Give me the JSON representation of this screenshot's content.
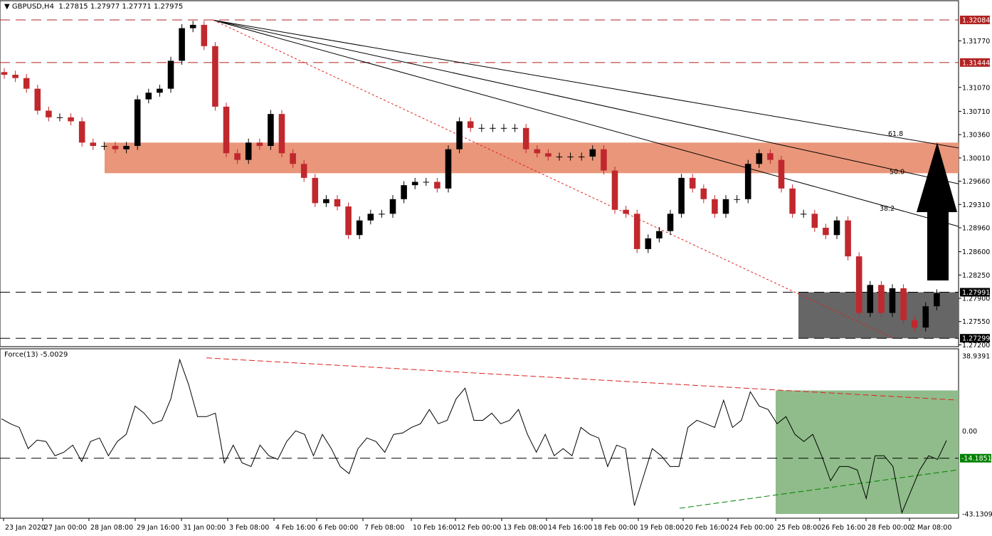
{
  "header": {
    "symbol": "GBPUSD,H4",
    "ohlc": "1.27815 1.27977 1.27771 1.27975"
  },
  "indicator": {
    "label": "Force(13) -5.0029"
  },
  "colors": {
    "bull": "#000000",
    "bear": "#c0282d",
    "resistance_zone": "#e9967a",
    "support_zone": "#666666",
    "force_zone": "#8fbc8a",
    "red_level": "#b22222",
    "green_level": "#008000"
  },
  "chart_data": [
    {
      "type": "candlestick",
      "symbol": "GBPUSD",
      "timeframe": "H4",
      "ylim": [
        1.272,
        1.3235
      ],
      "x_tick_labels": [
        "23 Jan 2020",
        "27 Jan 00:00",
        "28 Jan 08:00",
        "29 Jan 16:00",
        "31 Jan 00:00",
        "3 Feb 08:00",
        "4 Feb 16:00",
        "6 Feb 00:00",
        "7 Feb 08:00",
        "10 Feb 16:00",
        "12 Feb 00:00",
        "13 Feb 08:00",
        "14 Feb 16:00",
        "18 Feb 00:00",
        "19 Feb 08:00",
        "20 Feb 16:00",
        "24 Feb 00:00",
        "25 Feb 08:00",
        "26 Feb 16:00",
        "28 Feb 00:00",
        "2 Mar 08:00"
      ],
      "y_tick_labels": [
        "1.31770",
        "1.31070",
        "1.30710",
        "1.30360",
        "1.30010",
        "1.29660",
        "1.29310",
        "1.28960",
        "1.28600",
        "1.28250",
        "1.27900",
        "1.27550",
        "1.27200"
      ],
      "price_levels": [
        {
          "value": 1.32084,
          "label": "1.32084",
          "style": "red-dashed"
        },
        {
          "value": 1.31444,
          "label": "1.31444",
          "style": "red-dashed"
        },
        {
          "value": 1.27991,
          "label": "1.27991",
          "style": "black-dashed"
        },
        {
          "value": 1.27299,
          "label": "1.27299",
          "style": "black-dashed"
        }
      ],
      "resistance_zone": [
        1.2978,
        1.3024
      ],
      "support_zone": [
        1.27299,
        1.27991
      ],
      "fibonacci_fan": {
        "levels": [
          {
            "label": "38.2",
            "end": 1.2898
          },
          {
            "label": "50.0",
            "end": 1.2962
          },
          {
            "label": "61.8",
            "end": 1.3016
          }
        ],
        "start": 1.3208
      },
      "trendline_end": 1.273,
      "arrow": "up",
      "closes": [
        1.3126,
        1.3121,
        1.3105,
        1.3072,
        1.3062,
        1.3062,
        1.3056,
        1.3024,
        1.3019,
        1.3019,
        1.3014,
        1.3019,
        1.3089,
        1.3099,
        1.3105,
        1.3147,
        1.3196,
        1.3201,
        1.3169,
        1.3078,
        1.3008,
        1.2998,
        1.3024,
        1.3019,
        1.3067,
        1.3008,
        1.2992,
        1.2971,
        1.2933,
        1.2939,
        1.2928,
        1.2885,
        1.2907,
        1.2917,
        1.2917,
        1.2939,
        1.296,
        1.2965,
        1.2965,
        1.2955,
        1.3014,
        1.3056,
        1.3046,
        1.3046,
        1.3046,
        1.3046,
        1.3046,
        1.3014,
        1.3008,
        1.3003,
        1.3003,
        1.3003,
        1.3003,
        1.3014,
        1.2982,
        1.2923,
        1.2917,
        1.2864,
        1.288,
        1.2891,
        1.2917,
        1.2971,
        1.2955,
        1.2939,
        1.2917,
        1.2939,
        1.2939,
        1.2992,
        1.3008,
        1.2998,
        1.2955,
        1.2917,
        1.2917,
        1.2896,
        1.2885,
        1.2907,
        1.2853,
        1.2768,
        1.281,
        1.2768,
        1.2805,
        1.2757,
        1.2746,
        1.2778,
        1.27975
      ]
    },
    {
      "type": "line",
      "name": "Force(13)",
      "ylim": [
        -43.1309,
        38.9391
      ],
      "y_tick_labels": [
        "38.9391",
        "0.00",
        "-43.1309"
      ],
      "level": {
        "value": -14.1851,
        "label": "-14.1851"
      },
      "values": [
        6.3,
        3.7,
        1.8,
        -9.2,
        -4.8,
        -5.5,
        -12.9,
        -11.1,
        -7.4,
        -15.9,
        -5.5,
        -3.7,
        -12.9,
        -5.5,
        -1.8,
        12.9,
        9.2,
        3.7,
        5.5,
        16.6,
        37.0,
        24.0,
        7.4,
        7.4,
        9.2,
        -16.6,
        -7.4,
        -16.6,
        -18.5,
        -7.4,
        -12.9,
        -14.8,
        -5.5,
        0,
        -1.8,
        -12.9,
        -1.8,
        -9.2,
        -18.5,
        -22.2,
        -9.2,
        -3.7,
        -5.5,
        -11.1,
        -1.8,
        -1.1,
        1.8,
        3.7,
        11.1,
        3.7,
        5.5,
        16.6,
        22.2,
        5.5,
        5.5,
        9.2,
        3.7,
        5.5,
        11.1,
        -1.8,
        -11.1,
        -1.8,
        -12.9,
        -9.2,
        -12.9,
        1.8,
        -1.8,
        -3.7,
        -18.5,
        -7.4,
        -9.2,
        -38.8,
        -24.0,
        -9.2,
        -12.9,
        -18.5,
        -18.5,
        1.8,
        5.5,
        3.7,
        1.8,
        15.9,
        1.8,
        5.5,
        20.3,
        12.9,
        11.1,
        3.7,
        7.4,
        -1.8,
        -5.5,
        -1.8,
        -12.9,
        -25.9,
        -18.5,
        -18.5,
        -20.3,
        -35.1,
        -12.9,
        -12.9,
        -18.5,
        -42.5,
        -31.4,
        -20.3,
        -12.9,
        -14.8,
        -5.0
      ],
      "upper_trendline": [
        37.9,
        16.0
      ],
      "lower_trendline": [
        -40.2,
        -20.3
      ],
      "zone": [
        -43.1309,
        21.0
      ]
    }
  ]
}
